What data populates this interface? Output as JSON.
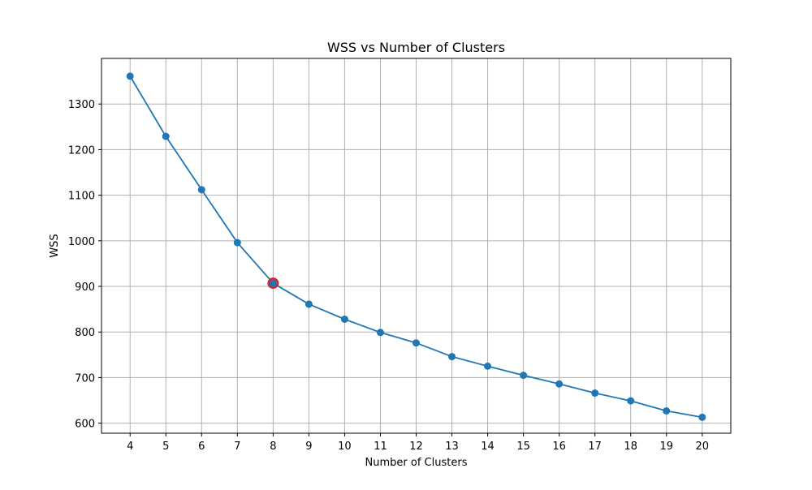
{
  "chart_data": {
    "type": "line",
    "title": "WSS vs Number of Clusters",
    "xlabel": "Number of Clusters",
    "ylabel": "WSS",
    "x": [
      4,
      5,
      6,
      7,
      8,
      9,
      10,
      11,
      12,
      13,
      14,
      15,
      16,
      17,
      18,
      19,
      20
    ],
    "series": [
      {
        "values": [
          1361,
          1229,
          1112,
          996,
          907,
          861,
          828,
          799,
          776,
          746,
          725,
          705,
          686,
          666,
          649,
          627,
          613
        ],
        "color": "#1f77b4"
      }
    ],
    "highlight": {
      "x": 8,
      "y": 907,
      "color": "#d62728"
    },
    "xlim": [
      3.2,
      20.8
    ],
    "ylim": [
      578,
      1400
    ],
    "xticks": [
      4,
      5,
      6,
      7,
      8,
      9,
      10,
      11,
      12,
      13,
      14,
      15,
      16,
      17,
      18,
      19,
      20
    ],
    "yticks": [
      600,
      700,
      800,
      900,
      1000,
      1100,
      1200,
      1300
    ],
    "grid": true
  }
}
